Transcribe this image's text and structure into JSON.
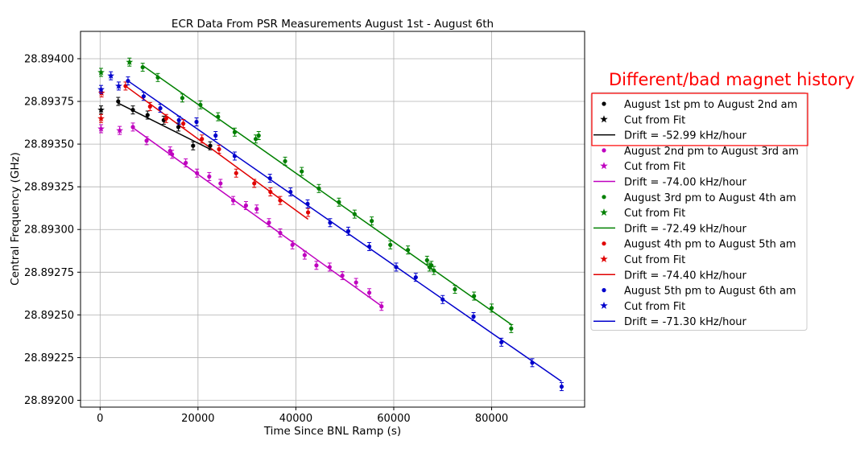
{
  "annotation": "Different/bad magnet history",
  "chart_data": {
    "type": "scatter",
    "title": "ECR Data From PSR Measurements August 1st - August 6th",
    "xlabel": "Time Since BNL Ramp (s)",
    "ylabel": "Central Frequency (GHz)",
    "xlim": [
      -4000,
      99000
    ],
    "ylim": [
      28.89196,
      28.89416
    ],
    "xticks": [
      0,
      20000,
      40000,
      60000,
      80000
    ],
    "xtick_labels": [
      "0",
      "20000",
      "40000",
      "60000",
      "80000"
    ],
    "yticks": [
      28.892,
      28.89225,
      28.8925,
      28.89275,
      28.893,
      28.89325,
      28.8935,
      28.89375,
      28.894
    ],
    "ytick_labels": [
      "28.89200",
      "28.89225",
      "28.89250",
      "28.89275",
      "28.89300",
      "28.89325",
      "28.89350",
      "28.89375",
      "28.89400"
    ],
    "grid": true,
    "legend_position": "right, outside the axes",
    "series": [
      {
        "name": "August 1st pm to August 2nd am",
        "cut_label": "Cut from Fit",
        "fit_label": "Drift = -52.99 kHz/hour",
        "color": "#000000",
        "points": [
          [
            3700,
            28.89375
          ],
          [
            6700,
            28.8937
          ],
          [
            9700,
            28.89367
          ],
          [
            13000,
            28.89364
          ],
          [
            16000,
            28.8936
          ],
          [
            19000,
            28.89349
          ],
          [
            22500,
            28.89349
          ]
        ],
        "cut_points": [
          [
            200,
            28.8937
          ]
        ],
        "fit": [
          [
            3700,
            28.89374
          ],
          [
            22500,
            28.89347
          ]
        ],
        "highlighted": true
      },
      {
        "name": "August 2nd pm to August 3rd am",
        "cut_label": "Cut from Fit",
        "fit_label": "Drift = -74.00 kHz/hour",
        "color": "#bf00bf",
        "points": [
          [
            6700,
            28.8936
          ],
          [
            9500,
            28.89352
          ],
          [
            14300,
            28.89346
          ],
          [
            14700,
            28.89344
          ],
          [
            17500,
            28.89339
          ],
          [
            19800,
            28.89333
          ],
          [
            22300,
            28.89331
          ],
          [
            24600,
            28.89327
          ],
          [
            27200,
            28.89317
          ],
          [
            29800,
            28.89314
          ],
          [
            32000,
            28.89312
          ],
          [
            34500,
            28.89304
          ],
          [
            36800,
            28.89298
          ],
          [
            39300,
            28.89291
          ],
          [
            41800,
            28.89285
          ],
          [
            44200,
            28.89279
          ],
          [
            46900,
            28.89278
          ],
          [
            49500,
            28.89273
          ],
          [
            52300,
            28.89269
          ],
          [
            55000,
            28.89263
          ],
          [
            57500,
            28.89255
          ]
        ],
        "cut_points": [
          [
            200,
            28.89359
          ],
          [
            4000,
            28.89358
          ]
        ],
        "fit": [
          [
            6500,
            28.8936
          ],
          [
            57600,
            28.89255
          ]
        ],
        "highlighted": false
      },
      {
        "name": "August 3rd pm to August 4th am",
        "cut_label": "Cut from Fit",
        "fit_label": "Drift = -72.49 kHz/hour",
        "color": "#008000",
        "points": [
          [
            8700,
            28.89395
          ],
          [
            11800,
            28.89389
          ],
          [
            16800,
            28.89377
          ],
          [
            20500,
            28.89373
          ],
          [
            24100,
            28.89366
          ],
          [
            27500,
            28.89357
          ],
          [
            31800,
            28.89353
          ],
          [
            32400,
            28.89355
          ],
          [
            37800,
            28.8934
          ],
          [
            41200,
            28.89334
          ],
          [
            44700,
            28.89324
          ],
          [
            48800,
            28.89316
          ],
          [
            52000,
            28.89309
          ],
          [
            55500,
            28.89305
          ],
          [
            59300,
            28.89291
          ],
          [
            62900,
            28.89288
          ],
          [
            66800,
            28.89282
          ],
          [
            67300,
            28.89278
          ],
          [
            67700,
            28.89279
          ],
          [
            68200,
            28.89276
          ],
          [
            72500,
            28.89265
          ],
          [
            76400,
            28.89261
          ],
          [
            80000,
            28.89254
          ],
          [
            84000,
            28.89242
          ]
        ],
        "cut_points": [
          [
            200,
            28.89392
          ],
          [
            6000,
            28.89398
          ]
        ],
        "fit": [
          [
            8700,
            28.89396
          ],
          [
            84200,
            28.89244
          ]
        ],
        "highlighted": false
      },
      {
        "name": "August 4th pm to August 5th am",
        "cut_label": "Cut from Fit",
        "fit_label": "Drift = -74.40 kHz/hour",
        "color": "#e00000",
        "points": [
          [
            5200,
            28.89384
          ],
          [
            10200,
            28.89372
          ],
          [
            13500,
            28.89365
          ],
          [
            17000,
            28.89362
          ],
          [
            20800,
            28.89353
          ],
          [
            24300,
            28.89347
          ],
          [
            27800,
            28.89333
          ],
          [
            31500,
            28.89327
          ],
          [
            34800,
            28.89322
          ],
          [
            36800,
            28.89317
          ],
          [
            42500,
            28.8931
          ]
        ],
        "cut_points": [
          [
            200,
            28.89365
          ],
          [
            300,
            28.8938
          ]
        ],
        "fit": [
          [
            5200,
            28.89384
          ],
          [
            42500,
            28.89306
          ]
        ],
        "highlighted": false
      },
      {
        "name": "August 5th pm to August 6th am",
        "cut_label": "Cut from Fit",
        "fit_label": "Drift = -71.30 kHz/hour",
        "color": "#0000cc",
        "points": [
          [
            5700,
            28.89387
          ],
          [
            8900,
            28.89378
          ],
          [
            12300,
            28.89371
          ],
          [
            16100,
            28.89364
          ],
          [
            19700,
            28.89363
          ],
          [
            23600,
            28.89355
          ],
          [
            27500,
            28.89343
          ],
          [
            34700,
            28.8933
          ],
          [
            38900,
            28.89322
          ],
          [
            42400,
            28.89315
          ],
          [
            47000,
            28.89304
          ],
          [
            50700,
            28.89299
          ],
          [
            55000,
            28.8929
          ],
          [
            60500,
            28.89278
          ],
          [
            64500,
            28.89272
          ],
          [
            70000,
            28.89259
          ],
          [
            76300,
            28.89249
          ],
          [
            82000,
            28.89234
          ],
          [
            88300,
            28.89222
          ],
          [
            94300,
            28.89208
          ]
        ],
        "cut_points": [
          [
            200,
            28.89382
          ],
          [
            2200,
            28.8939
          ],
          [
            3800,
            28.89384
          ]
        ],
        "fit": [
          [
            5700,
            28.89387
          ],
          [
            94300,
            28.89211
          ]
        ],
        "highlighted": false
      }
    ]
  }
}
